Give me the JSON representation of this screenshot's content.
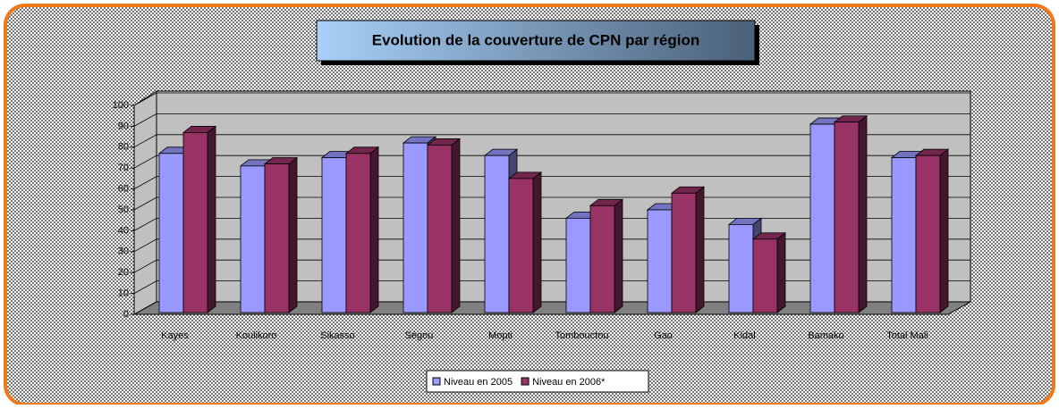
{
  "chart_data": {
    "type": "bar",
    "title": "Evolution de la couverture de CPN par région",
    "categories": [
      "Kayes",
      "Koulikoro",
      "Sikasso",
      "Ségou",
      "Mopti",
      "Tombouctou",
      "Gao",
      "Kidal",
      "Bamako",
      "Total Mali"
    ],
    "series": [
      {
        "name": "Niveau en 2005",
        "color": "#9999ff",
        "values": [
          77,
          71,
          75,
          82,
          76,
          46,
          50,
          43,
          91,
          75
        ]
      },
      {
        "name": "Niveau en 2006*",
        "color": "#993366",
        "values": [
          87,
          72,
          77,
          81,
          65,
          52,
          58,
          36,
          92,
          76
        ]
      }
    ],
    "ylim": [
      0,
      100
    ],
    "yticks": [
      0,
      10,
      20,
      30,
      40,
      50,
      60,
      70,
      80,
      90,
      100
    ],
    "grid": true,
    "legend": "bottom"
  }
}
